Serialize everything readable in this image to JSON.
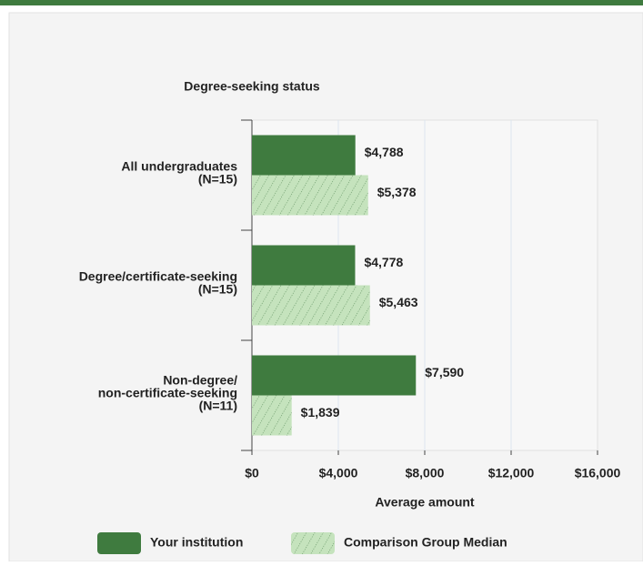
{
  "chart_data": {
    "type": "hbar",
    "title": "Degree-seeking status",
    "xlabel": "Average amount",
    "categories": [
      "All undergraduates\n(N=15)",
      "Degree/certificate-seeking\n(N=15)",
      "Non-degree/\nnon-certificate-seeking\n(N=11)"
    ],
    "series": [
      {
        "name": "Your institution",
        "color": "#3f7b3f",
        "values": [
          4788,
          4778,
          7590
        ],
        "value_labels": [
          "$4,788",
          "$4,778",
          "$7,590"
        ]
      },
      {
        "name": "Comparison Group Median",
        "color": "#c5e3bd",
        "hatch": true,
        "values": [
          5378,
          5463,
          1839
        ],
        "value_labels": [
          "$5,378",
          "$5,463",
          "$1,839"
        ]
      }
    ],
    "xlim": [
      0,
      16000
    ],
    "xticks": [
      {
        "value": 0,
        "label": "$0"
      },
      {
        "value": 4000,
        "label": "$4,000"
      },
      {
        "value": 8000,
        "label": "$8,000"
      },
      {
        "value": 12000,
        "label": "$12,000"
      },
      {
        "value": 16000,
        "label": "$16,000"
      }
    ],
    "grid": true
  }
}
